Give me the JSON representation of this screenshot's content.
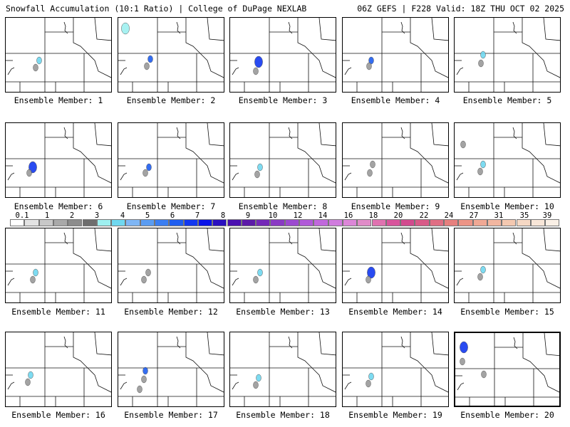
{
  "header": {
    "left": "Snowfall Accumulation (10:1 Ratio) | College of DuPage NEXLAB",
    "right": "06Z GEFS | F228 Valid: 18Z THU OCT 02 2025"
  },
  "colorbar": {
    "tick_labels": [
      "0.1",
      "1",
      "2",
      "3",
      "4",
      "5",
      "6",
      "7",
      "8",
      "9",
      "10",
      "12",
      "14",
      "16",
      "18",
      "20",
      "22",
      "24",
      "27",
      "31",
      "35",
      "39"
    ],
    "colors": [
      "#ffffff",
      "#e3e3e3",
      "#c8c8c8",
      "#a9a9a9",
      "#8c8c8c",
      "#6e6e6e",
      "#9ef0f0",
      "#6fd8f0",
      "#7fb6f5",
      "#5a9cf2",
      "#3b7ef2",
      "#1f5ef0",
      "#1238f0",
      "#0a14e8",
      "#2a10c0",
      "#4a0fb0",
      "#5c1aa8",
      "#7428b8",
      "#8a3ac4",
      "#9c4ad0",
      "#b05ad8",
      "#c068dc",
      "#d07cde",
      "#dc86d8",
      "#e08cc8",
      "#e072b0",
      "#d8549c",
      "#d24a8e",
      "#d85a88",
      "#e06e84",
      "#e6807e",
      "#ec9486",
      "#f0a894",
      "#f2b6a0",
      "#f4c8b0",
      "#f6d8c4",
      "#f8e6d8",
      "#faf0e6"
    ]
  },
  "members": [
    {
      "label": "Ensemble Member: 1",
      "blobs": [
        {
          "x": 47,
          "y": 60,
          "s": "cyan"
        },
        {
          "x": 42,
          "y": 70,
          "s": "gray"
        }
      ]
    },
    {
      "label": "Ensemble Member: 2",
      "blobs": [
        {
          "x": 45,
          "y": 58,
          "s": "blue"
        },
        {
          "x": 40,
          "y": 68,
          "s": "gray"
        },
        {
          "x": 10,
          "y": 15,
          "s": "cyanlarge"
        }
      ]
    },
    {
      "label": "Ensemble Member: 3",
      "blobs": [
        {
          "x": 40,
          "y": 62,
          "s": "bluelarge"
        },
        {
          "x": 36,
          "y": 75,
          "s": "gray"
        }
      ]
    },
    {
      "label": "Ensemble Member: 4",
      "blobs": [
        {
          "x": 40,
          "y": 60,
          "s": "blue"
        },
        {
          "x": 37,
          "y": 68,
          "s": "gray"
        }
      ]
    },
    {
      "label": "Ensemble Member: 5",
      "blobs": [
        {
          "x": 40,
          "y": 52,
          "s": "cyan"
        },
        {
          "x": 37,
          "y": 64,
          "s": "gray"
        }
      ]
    },
    {
      "label": "Ensemble Member: 6",
      "blobs": [
        {
          "x": 38,
          "y": 62,
          "s": "bluelarge"
        },
        {
          "x": 33,
          "y": 70,
          "s": "gray"
        }
      ]
    },
    {
      "label": "Ensemble Member: 7",
      "blobs": [
        {
          "x": 43,
          "y": 62,
          "s": "blue"
        },
        {
          "x": 38,
          "y": 70,
          "s": "gray"
        }
      ]
    },
    {
      "label": "Ensemble Member: 8",
      "blobs": [
        {
          "x": 42,
          "y": 62,
          "s": "cyan"
        },
        {
          "x": 38,
          "y": 72,
          "s": "gray"
        }
      ]
    },
    {
      "label": "Ensemble Member: 9",
      "blobs": [
        {
          "x": 42,
          "y": 58,
          "s": "gray"
        },
        {
          "x": 38,
          "y": 70,
          "s": "gray"
        }
      ]
    },
    {
      "label": "Ensemble Member: 10",
      "blobs": [
        {
          "x": 40,
          "y": 58,
          "s": "cyan"
        },
        {
          "x": 36,
          "y": 68,
          "s": "gray"
        },
        {
          "x": 12,
          "y": 30,
          "s": "gray"
        }
      ]
    },
    {
      "label": "Ensemble Member: 11",
      "blobs": [
        {
          "x": 42,
          "y": 62,
          "s": "cyan"
        },
        {
          "x": 38,
          "y": 72,
          "s": "gray"
        }
      ]
    },
    {
      "label": "Ensemble Member: 12",
      "blobs": [
        {
          "x": 42,
          "y": 62,
          "s": "gray"
        },
        {
          "x": 36,
          "y": 72,
          "s": "gray"
        }
      ]
    },
    {
      "label": "Ensemble Member: 13",
      "blobs": [
        {
          "x": 42,
          "y": 62,
          "s": "cyan"
        },
        {
          "x": 36,
          "y": 72,
          "s": "gray"
        }
      ]
    },
    {
      "label": "Ensemble Member: 14",
      "blobs": [
        {
          "x": 40,
          "y": 62,
          "s": "bluelarge"
        },
        {
          "x": 36,
          "y": 72,
          "s": "gray"
        }
      ]
    },
    {
      "label": "Ensemble Member: 15",
      "blobs": [
        {
          "x": 40,
          "y": 58,
          "s": "cyan"
        },
        {
          "x": 36,
          "y": 68,
          "s": "gray"
        }
      ]
    },
    {
      "label": "Ensemble Member: 16",
      "blobs": [
        {
          "x": 35,
          "y": 60,
          "s": "cyan"
        },
        {
          "x": 31,
          "y": 70,
          "s": "gray"
        }
      ]
    },
    {
      "label": "Ensemble Member: 17",
      "blobs": [
        {
          "x": 38,
          "y": 54,
          "s": "blue"
        },
        {
          "x": 36,
          "y": 66,
          "s": "gray"
        },
        {
          "x": 30,
          "y": 80,
          "s": "gray"
        }
      ]
    },
    {
      "label": "Ensemble Member: 18",
      "blobs": [
        {
          "x": 40,
          "y": 64,
          "s": "cyan"
        },
        {
          "x": 36,
          "y": 74,
          "s": "gray"
        }
      ]
    },
    {
      "label": "Ensemble Member: 19",
      "blobs": [
        {
          "x": 40,
          "y": 62,
          "s": "cyan"
        },
        {
          "x": 36,
          "y": 72,
          "s": "gray"
        }
      ]
    },
    {
      "label": "Ensemble Member: 20",
      "blobs": [
        {
          "x": 12,
          "y": 20,
          "s": "bluelarge"
        },
        {
          "x": 10,
          "y": 40,
          "s": "gray"
        },
        {
          "x": 40,
          "y": 58,
          "s": "gray"
        }
      ]
    }
  ]
}
